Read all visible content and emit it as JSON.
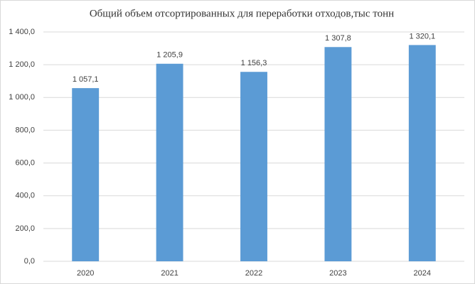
{
  "chart_data": {
    "type": "bar",
    "title": "Общий объем отсортированных для переработки отходов,тыс тонн",
    "categories": [
      "2020",
      "2021",
      "2022",
      "2023",
      "2024"
    ],
    "values": [
      1057.1,
      1205.9,
      1156.3,
      1307.8,
      1320.1
    ],
    "value_labels": [
      "1 057,1",
      "1 205,9",
      "1 156,3",
      "1 307,8",
      "1 320,1"
    ],
    "color": "#5b9bd5",
    "ylim": [
      0,
      1400
    ],
    "yticks": [
      {
        "value": 0,
        "label": "0,0"
      },
      {
        "value": 200,
        "label": "200,0"
      },
      {
        "value": 400,
        "label": "400,0"
      },
      {
        "value": 600,
        "label": "600,0"
      },
      {
        "value": 800,
        "label": "800,0"
      },
      {
        "value": 1000,
        "label": "1 000,0"
      },
      {
        "value": 1200,
        "label": "1 200,0"
      },
      {
        "value": 1400,
        "label": "1 400,0"
      }
    ],
    "grid": true
  }
}
